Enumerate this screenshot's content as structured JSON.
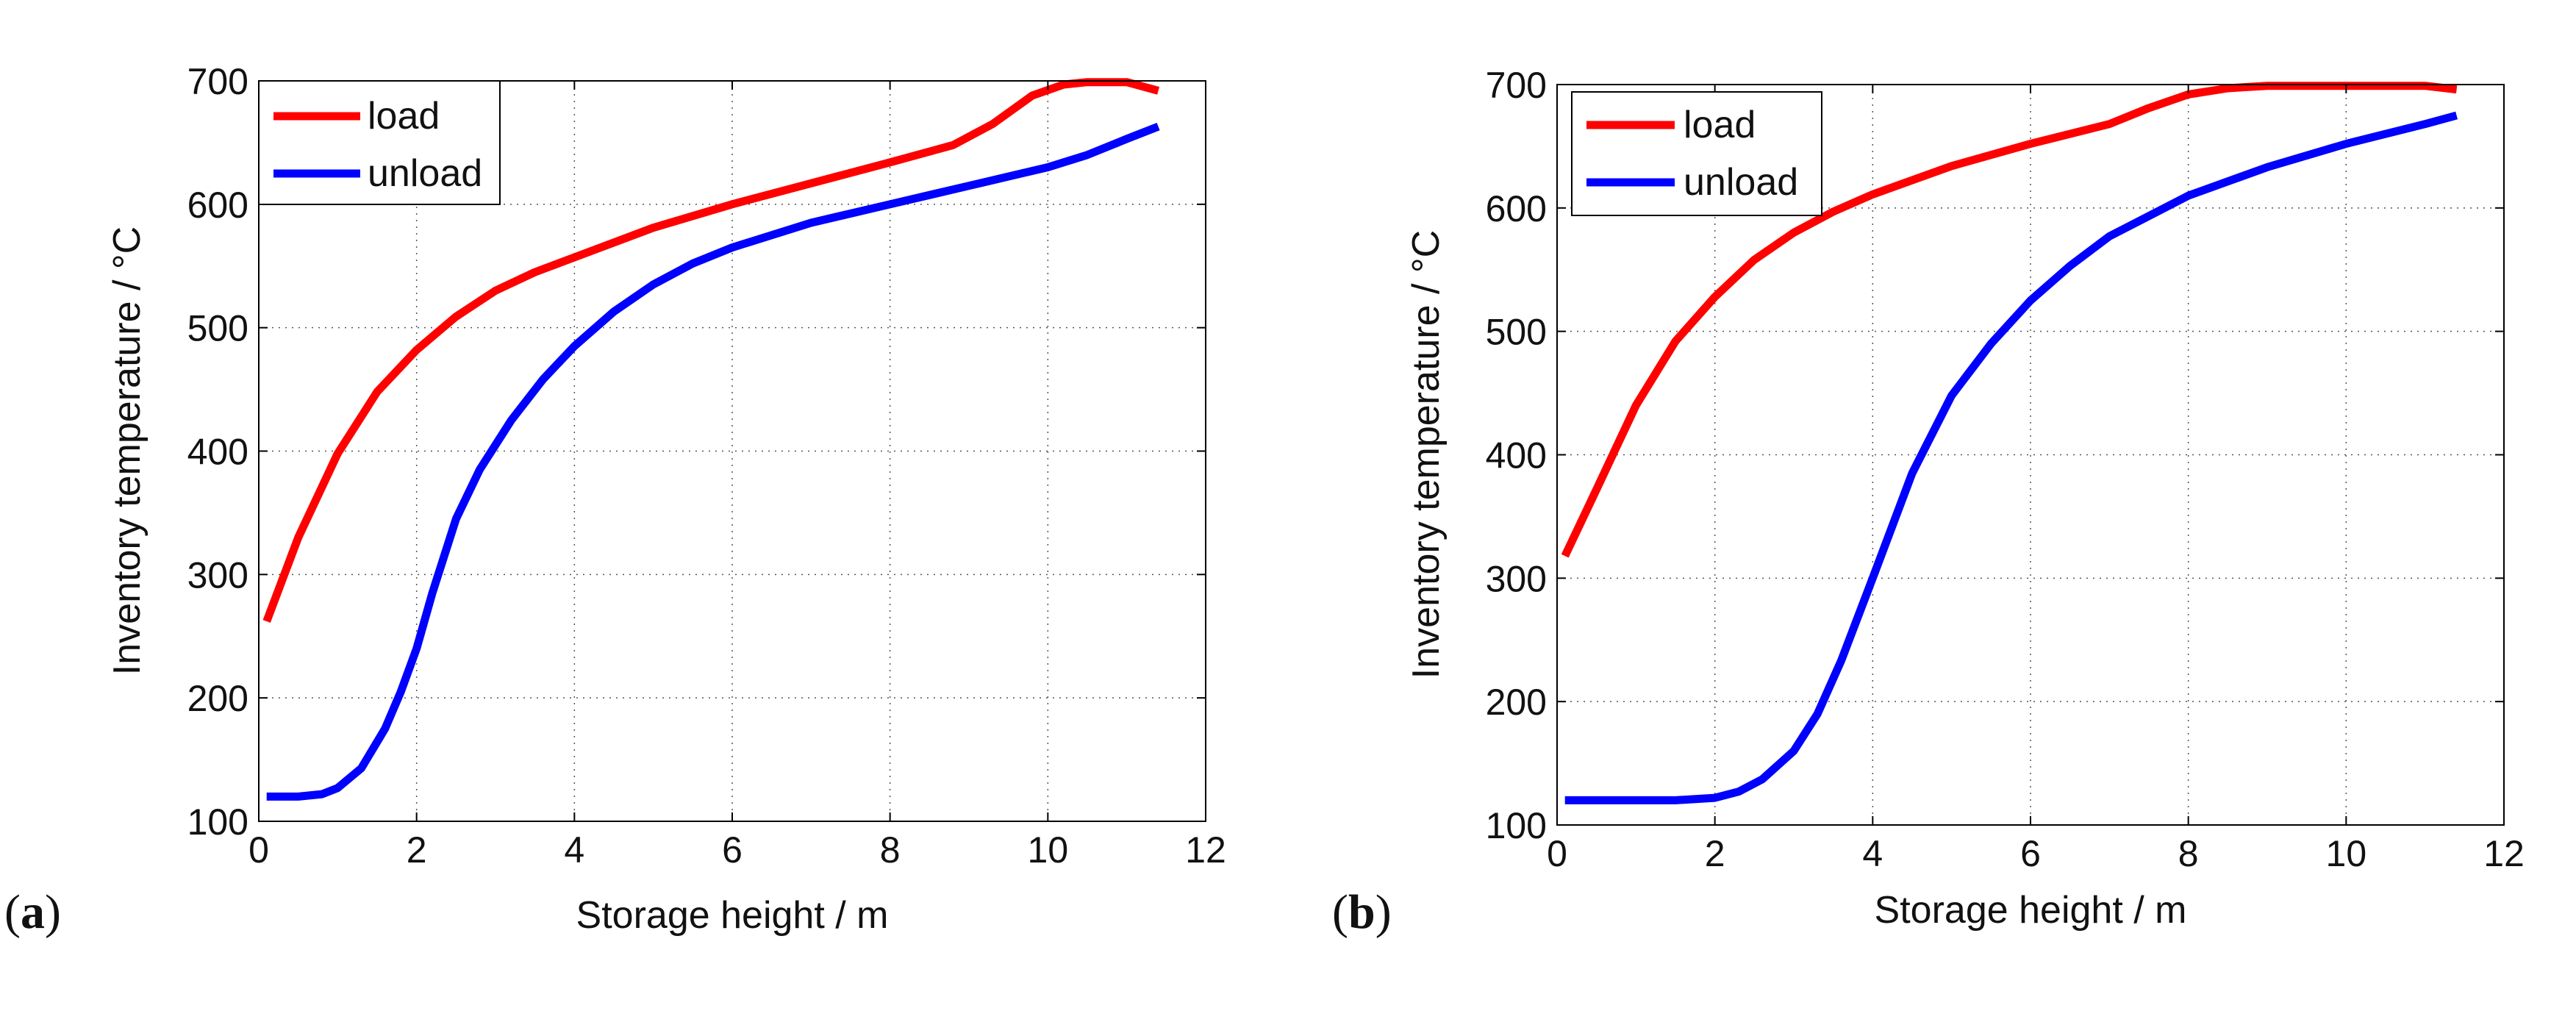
{
  "chart_data": [
    {
      "panel": "a",
      "type": "line",
      "xlabel": "Storage height / m",
      "ylabel": "Inventory temperature / °C",
      "xlim": [
        0,
        12
      ],
      "ylim": [
        100,
        700
      ],
      "xticks": [
        0,
        2,
        4,
        6,
        8,
        10,
        12
      ],
      "yticks": [
        100,
        200,
        300,
        400,
        500,
        600,
        700
      ],
      "grid": true,
      "legend_position": "top-left",
      "series": [
        {
          "name": "load",
          "color": "#ff0000",
          "x": [
            0.1,
            0.5,
            1.0,
            1.5,
            2.0,
            2.5,
            3.0,
            3.5,
            4.0,
            5.0,
            6.0,
            7.0,
            8.0,
            8.8,
            9.3,
            9.8,
            10.2,
            10.5,
            11.0,
            11.4
          ],
          "y": [
            262,
            330,
            398,
            448,
            482,
            509,
            530,
            545,
            557,
            581,
            600,
            617,
            634,
            648,
            665,
            688,
            697,
            699,
            699,
            692
          ]
        },
        {
          "name": "unload",
          "color": "#0000ff",
          "x": [
            0.1,
            0.5,
            0.8,
            1.0,
            1.3,
            1.6,
            1.8,
            2.0,
            2.2,
            2.5,
            2.8,
            3.2,
            3.6,
            4.0,
            4.5,
            5.0,
            5.5,
            6.0,
            7.0,
            8.0,
            9.0,
            10.0,
            10.5,
            11.0,
            11.4
          ],
          "y": [
            120,
            120,
            122,
            127,
            143,
            175,
            205,
            240,
            285,
            345,
            385,
            425,
            458,
            485,
            513,
            535,
            552,
            565,
            585,
            600,
            615,
            630,
            640,
            653,
            663
          ]
        }
      ]
    },
    {
      "panel": "b",
      "type": "line",
      "xlabel": "Storage height / m",
      "ylabel": "Inventory temperature / °C",
      "xlim": [
        0,
        12
      ],
      "ylim": [
        100,
        700
      ],
      "xticks": [
        0,
        2,
        4,
        6,
        8,
        10,
        12
      ],
      "yticks": [
        100,
        200,
        300,
        400,
        500,
        600,
        700
      ],
      "grid": true,
      "legend_position": "top-left",
      "series": [
        {
          "name": "load",
          "color": "#ff0000",
          "x": [
            0.1,
            0.5,
            1.0,
            1.5,
            2.0,
            2.5,
            3.0,
            3.5,
            4.0,
            5.0,
            6.0,
            7.0,
            7.5,
            8.0,
            8.5,
            9.0,
            10.0,
            11.0,
            11.4
          ],
          "y": [
            318,
            372,
            440,
            492,
            528,
            558,
            580,
            597,
            611,
            634,
            652,
            668,
            681,
            692,
            697,
            699,
            699,
            699,
            696
          ]
        },
        {
          "name": "unload",
          "color": "#0000ff",
          "x": [
            0.1,
            1.0,
            1.5,
            2.0,
            2.3,
            2.6,
            3.0,
            3.3,
            3.6,
            4.0,
            4.5,
            5.0,
            5.5,
            6.0,
            6.5,
            7.0,
            8.0,
            9.0,
            10.0,
            11.0,
            11.4
          ],
          "y": [
            120,
            120,
            120,
            122,
            127,
            137,
            160,
            190,
            233,
            300,
            385,
            448,
            490,
            525,
            553,
            577,
            610,
            633,
            652,
            668,
            675
          ]
        }
      ]
    }
  ],
  "panels": {
    "a": {
      "prefix": "(",
      "letter": "a",
      "suffix": ")"
    },
    "b": {
      "prefix": "(",
      "letter": "b",
      "suffix": ")"
    }
  }
}
